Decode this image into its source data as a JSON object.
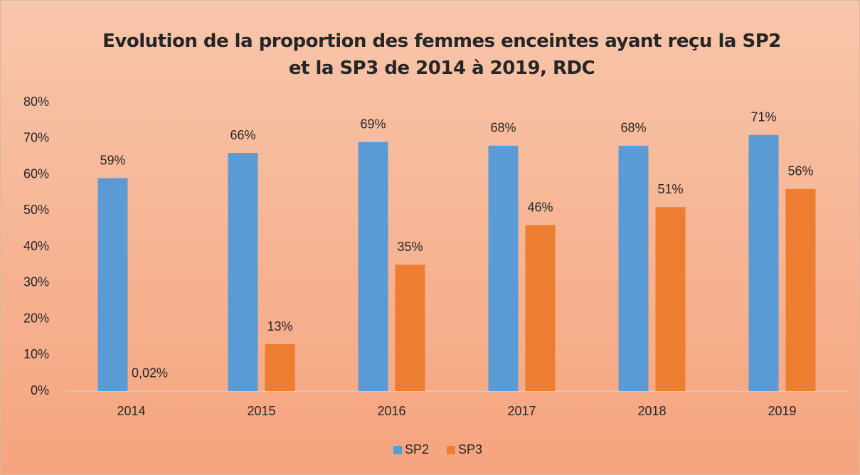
{
  "chart_data": {
    "type": "bar",
    "title": "Evolution de la proportion des femmes enceintes ayant reçu la SP2 et la SP3 de 2014 à 2019, RDC",
    "categories": [
      "2014",
      "2015",
      "2016",
      "2017",
      "2018",
      "2019"
    ],
    "series": [
      {
        "name": "SP2",
        "color": "#5b9bd5",
        "values": [
          59,
          66,
          69,
          68,
          68,
          71
        ],
        "value_labels": [
          "59%",
          "66%",
          "69%",
          "68%",
          "68%",
          "71%"
        ]
      },
      {
        "name": "SP3",
        "color": "#ed7d31",
        "values": [
          0.02,
          13,
          35,
          46,
          51,
          56
        ],
        "value_labels": [
          "0,02%",
          "13%",
          "35%",
          "46%",
          "51%",
          "56%"
        ]
      }
    ],
    "ylim": [
      0,
      80
    ],
    "yticks": [
      {
        "value": 0,
        "label": "0%"
      },
      {
        "value": 10,
        "label": "10%"
      },
      {
        "value": 20,
        "label": "20%"
      },
      {
        "value": 30,
        "label": "30%"
      },
      {
        "value": 40,
        "label": "40%"
      },
      {
        "value": 50,
        "label": "50%"
      },
      {
        "value": 60,
        "label": "60%"
      },
      {
        "value": 70,
        "label": "70%"
      },
      {
        "value": 80,
        "label": "80%"
      }
    ],
    "grid": false,
    "legend": "bottom"
  }
}
